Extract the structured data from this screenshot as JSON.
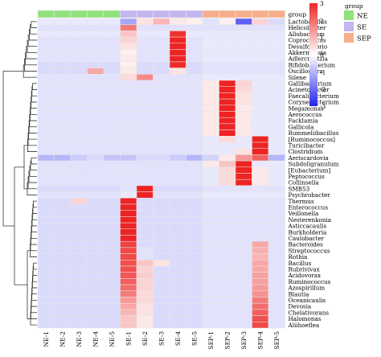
{
  "chart_data": {
    "type": "heatmap",
    "title": "",
    "xlabel": "",
    "ylabel": "",
    "columns": [
      "NE-1",
      "NE-2",
      "NE-3",
      "NE-4",
      "NE-5",
      "SE-1",
      "SE-2",
      "SE-3",
      "SE-4",
      "SE-5",
      "SEP-1",
      "SEP-2",
      "SEP-3",
      "SEP-4",
      "SEP-5"
    ],
    "column_groups": [
      "NE",
      "NE",
      "NE",
      "NE",
      "NE",
      "SE",
      "SE",
      "SE",
      "SE",
      "SE",
      "SEP",
      "SEP",
      "SEP",
      "SEP",
      "SEP"
    ],
    "group_title": "group",
    "groups": [
      {
        "name": "NE",
        "color": "#8fe37a"
      },
      {
        "name": "SE",
        "color": "#c3b5ee"
      },
      {
        "name": "SEP",
        "color": "#f6ae8a"
      }
    ],
    "color_scale": {
      "min": -3,
      "max": 3,
      "ticks": [
        3,
        2,
        1,
        0,
        -1,
        -2,
        -3
      ],
      "colors": [
        "#2323ee",
        "#ffffff",
        "#ee2323"
      ]
    },
    "rows": [
      "Lactobacillus",
      "Helicobacter",
      "Allobaculum",
      "Coprococcus",
      "Desulfovibrio",
      "Akkermansia",
      "Adlercreutzia",
      "Bifidobacterium",
      "Oscillospira",
      "Silene",
      "Gallibacterium",
      "Acinetobacter",
      "Faecalibacterium",
      "Corynebacterium",
      "Megamonas",
      "Aerococcus",
      "Facklamia",
      "Gallicola",
      "Rummeliibacillus",
      "[Ruminococcus]",
      "Turicibacter",
      "Clostridium",
      "Aeriscardovia",
      "Subdoligranulum",
      "[Eubacterium]",
      "Peptococcus",
      "Collinsella",
      "SMB53",
      "Psychrobacter",
      "Thermus",
      "Enterococcus",
      "Veillonella",
      "Nesterenkonia",
      "Asticcacaulis",
      "Burkholderia",
      "Caulobacter",
      "Bacteroides",
      "Streptococcus",
      "Rothia",
      "Bacillus",
      "Rubrivivax",
      "Acidovorax",
      "Ruminococcus",
      "Azospirillum",
      "Blautia",
      "Oceanicaulis",
      "Devosia",
      "Chelativorans",
      "Halomonas",
      "Aliihoeflea"
    ],
    "values": [
      [
        -0.3,
        -0.3,
        -0.3,
        -0.3,
        -0.3,
        -1.2,
        0.4,
        1.0,
        0.3,
        0.2,
        -0.4,
        0.2,
        -2.2,
        0.6,
        -0.5
      ],
      [
        -0.4,
        -0.4,
        -0.4,
        -0.4,
        -0.4,
        1.8,
        -0.4,
        -0.4,
        -0.4,
        -0.4,
        -0.4,
        -0.4,
        -0.4,
        -0.4,
        -0.4
      ],
      [
        -0.3,
        -0.3,
        -0.3,
        -0.3,
        -0.3,
        0.8,
        -0.3,
        -0.3,
        2.8,
        -0.3,
        -0.3,
        -0.3,
        -0.3,
        -0.3,
        -0.3
      ],
      [
        -0.4,
        -0.4,
        -0.4,
        -0.4,
        -0.4,
        0.6,
        -0.4,
        -0.4,
        3.0,
        -0.4,
        -0.3,
        -0.3,
        -0.3,
        -0.3,
        -0.3
      ],
      [
        -0.4,
        -0.4,
        -0.4,
        -0.4,
        -0.4,
        0.4,
        -0.4,
        -0.4,
        3.0,
        -0.4,
        -0.3,
        -0.3,
        -0.3,
        -0.3,
        -0.3
      ],
      [
        -0.4,
        -0.4,
        -0.4,
        -0.4,
        -0.4,
        0.2,
        -0.4,
        -0.4,
        3.0,
        -0.4,
        -0.3,
        -0.3,
        -0.3,
        -0.3,
        -0.3
      ],
      [
        -0.4,
        -0.4,
        -0.4,
        -0.4,
        -0.4,
        0.3,
        -0.4,
        -0.4,
        3.0,
        -0.4,
        -0.3,
        -0.3,
        -0.3,
        -0.3,
        -0.3
      ],
      [
        -0.5,
        -0.5,
        -0.5,
        -0.5,
        -0.5,
        0.2,
        -0.5,
        -0.5,
        2.9,
        -0.5,
        -0.4,
        -0.4,
        -0.4,
        -0.4,
        -0.4
      ],
      [
        -0.5,
        -0.5,
        -0.5,
        1.2,
        -0.5,
        0.3,
        -0.5,
        -0.5,
        0.4,
        -0.5,
        -0.4,
        -0.4,
        -0.4,
        -0.4,
        -0.4
      ],
      [
        -0.4,
        -0.4,
        -0.4,
        -0.4,
        -0.4,
        0.5,
        1.6,
        -0.4,
        -0.4,
        -0.4,
        -0.3,
        -0.3,
        -0.3,
        -0.3,
        -0.3
      ],
      [
        -0.4,
        -0.4,
        -0.4,
        -0.4,
        -0.4,
        -0.4,
        -0.4,
        -0.4,
        -0.4,
        -0.4,
        0.3,
        3.0,
        0.6,
        -0.3,
        -0.3
      ],
      [
        -0.4,
        -0.4,
        -0.4,
        -0.4,
        -0.4,
        -0.4,
        -0.4,
        -0.4,
        -0.4,
        -0.4,
        0.3,
        3.0,
        0.5,
        -0.3,
        -0.3
      ],
      [
        -0.4,
        -0.4,
        -0.4,
        -0.4,
        -0.4,
        -0.4,
        -0.4,
        -0.4,
        -0.4,
        -0.4,
        0.3,
        3.0,
        0.4,
        -0.3,
        -0.3
      ],
      [
        -0.4,
        -0.4,
        -0.4,
        -0.4,
        -0.4,
        -0.4,
        -0.4,
        -0.4,
        -0.4,
        -0.4,
        0.3,
        3.0,
        0.4,
        -0.3,
        -0.3
      ],
      [
        -0.4,
        -0.4,
        -0.4,
        -0.4,
        -0.4,
        -0.4,
        -0.4,
        -0.4,
        -0.4,
        -0.4,
        0.3,
        3.0,
        0.3,
        -0.3,
        -0.3
      ],
      [
        -0.4,
        -0.4,
        -0.4,
        -0.4,
        -0.4,
        -0.4,
        -0.4,
        -0.4,
        -0.4,
        -0.4,
        0.3,
        3.0,
        0.3,
        -0.3,
        -0.3
      ],
      [
        -0.4,
        -0.4,
        -0.4,
        -0.4,
        -0.4,
        -0.4,
        -0.4,
        -0.4,
        -0.4,
        -0.4,
        0.3,
        3.0,
        0.3,
        -0.3,
        -0.3
      ],
      [
        -0.4,
        -0.4,
        -0.4,
        -0.4,
        -0.4,
        -0.4,
        -0.4,
        -0.4,
        -0.4,
        -0.4,
        0.3,
        3.0,
        0.3,
        -0.3,
        -0.3
      ],
      [
        -0.4,
        -0.4,
        -0.4,
        -0.4,
        -0.4,
        -0.4,
        -0.4,
        -0.4,
        -0.4,
        -0.4,
        0.3,
        3.0,
        0.3,
        -0.3,
        -0.3
      ],
      [
        -0.4,
        -0.4,
        -0.4,
        -0.4,
        -0.4,
        -0.4,
        -0.4,
        -0.4,
        -0.4,
        -0.4,
        -0.3,
        0.5,
        -0.3,
        3.0,
        -0.3
      ],
      [
        -0.4,
        -0.4,
        -0.4,
        -0.4,
        -0.4,
        -0.4,
        -0.4,
        -0.4,
        -0.4,
        -0.4,
        -0.3,
        -0.3,
        -0.3,
        3.0,
        -0.3
      ],
      [
        -0.4,
        -0.4,
        -0.4,
        -0.4,
        -0.4,
        -0.4,
        -0.4,
        -0.4,
        -0.4,
        -0.4,
        -0.3,
        -0.3,
        0.4,
        3.0,
        -0.3
      ],
      [
        -1.0,
        -1.0,
        -0.7,
        -0.5,
        -0.8,
        -0.8,
        -0.5,
        -0.5,
        -0.7,
        -1.0,
        -0.6,
        0.3,
        1.4,
        2.2,
        -1.0
      ],
      [
        -0.4,
        -0.4,
        -0.4,
        -0.4,
        -0.4,
        -0.4,
        -0.4,
        -0.4,
        -0.4,
        -0.4,
        0.3,
        0.8,
        3.0,
        -0.3,
        -0.3
      ],
      [
        -0.4,
        -0.4,
        -0.4,
        -0.4,
        -0.4,
        -0.4,
        -0.4,
        -0.4,
        -0.4,
        -0.4,
        -0.3,
        0.5,
        3.0,
        0.3,
        -0.3
      ],
      [
        -0.4,
        -0.4,
        -0.4,
        -0.4,
        -0.4,
        -0.4,
        -0.4,
        -0.4,
        -0.4,
        -0.4,
        -0.3,
        0.5,
        3.0,
        0.3,
        -0.3
      ],
      [
        -0.4,
        -0.4,
        -0.4,
        -0.4,
        -0.4,
        -0.4,
        -0.4,
        -0.4,
        -0.4,
        -0.4,
        -0.3,
        0.5,
        3.0,
        0.3,
        -0.3
      ],
      [
        -0.5,
        -0.5,
        -0.5,
        -0.5,
        -0.5,
        -0.4,
        3.0,
        -0.5,
        -0.5,
        -0.5,
        -0.4,
        -0.4,
        -0.4,
        -0.4,
        -0.4
      ],
      [
        -0.4,
        -0.4,
        -0.4,
        -0.4,
        -0.4,
        -0.3,
        3.0,
        -0.4,
        -0.4,
        -0.4,
        -0.3,
        -0.3,
        -0.3,
        -0.3,
        -0.3
      ],
      [
        -0.5,
        -0.5,
        0.6,
        -0.5,
        -0.5,
        3.0,
        -0.5,
        -0.5,
        -0.5,
        -0.5,
        -0.4,
        -0.4,
        -0.4,
        -0.4,
        -0.4
      ],
      [
        -0.5,
        -0.5,
        -0.5,
        -0.5,
        -0.5,
        3.0,
        -0.5,
        -0.5,
        -0.5,
        -0.5,
        -0.4,
        -0.4,
        -0.4,
        -0.4,
        -0.4
      ],
      [
        -0.5,
        -0.5,
        -0.5,
        -0.5,
        -0.5,
        3.0,
        -0.5,
        -0.5,
        -0.5,
        -0.5,
        -0.4,
        -0.4,
        -0.4,
        -0.4,
        -0.4
      ],
      [
        -0.5,
        -0.5,
        -0.5,
        -0.5,
        -0.5,
        3.0,
        -0.5,
        -0.5,
        -0.5,
        -0.5,
        -0.4,
        -0.4,
        -0.4,
        -0.4,
        -0.4
      ],
      [
        -0.5,
        -0.5,
        -0.5,
        -0.5,
        -0.5,
        3.0,
        -0.5,
        -0.5,
        -0.5,
        -0.5,
        -0.4,
        -0.4,
        -0.4,
        -0.4,
        -0.4
      ],
      [
        -0.5,
        -0.5,
        -0.5,
        -0.5,
        -0.5,
        3.0,
        -0.5,
        -0.5,
        -0.5,
        -0.5,
        -0.4,
        -0.4,
        -0.4,
        -0.4,
        -0.4
      ],
      [
        -0.5,
        -0.5,
        -0.5,
        -0.5,
        -0.5,
        3.0,
        -0.5,
        -0.5,
        -0.5,
        -0.5,
        -0.4,
        -0.4,
        -0.4,
        -0.4,
        -0.4
      ],
      [
        -0.5,
        -0.5,
        -0.5,
        -0.5,
        -0.5,
        2.6,
        -0.5,
        -0.5,
        -0.5,
        -0.5,
        -0.4,
        -0.4,
        -0.4,
        1.2,
        -0.4
      ],
      [
        -0.5,
        -0.5,
        -0.5,
        -0.5,
        -0.5,
        2.5,
        -0.4,
        -0.5,
        -0.5,
        -0.5,
        -0.4,
        -0.4,
        -0.4,
        1.1,
        -0.4
      ],
      [
        -0.5,
        -0.5,
        -0.5,
        -0.5,
        -0.5,
        2.5,
        -0.4,
        -0.5,
        -0.5,
        -0.5,
        -0.4,
        -0.4,
        -0.4,
        1.0,
        -0.4
      ],
      [
        -0.5,
        -0.5,
        -0.5,
        -0.5,
        -0.5,
        2.4,
        0.8,
        0.4,
        -0.5,
        -0.5,
        -0.4,
        -0.4,
        -0.4,
        1.2,
        -0.4
      ],
      [
        -0.5,
        -0.5,
        -0.5,
        -0.5,
        -0.5,
        2.4,
        0.6,
        -0.5,
        -0.5,
        -0.5,
        -0.4,
        -0.4,
        -0.4,
        1.2,
        -0.4
      ],
      [
        -0.5,
        -0.5,
        -0.5,
        -0.5,
        -0.5,
        2.3,
        0.7,
        -0.5,
        -0.5,
        -0.5,
        -0.4,
        -0.4,
        -0.4,
        1.3,
        -0.4
      ],
      [
        -0.5,
        -0.5,
        -0.5,
        -0.5,
        -0.5,
        2.2,
        0.6,
        -0.5,
        -0.5,
        -0.5,
        -0.4,
        -0.4,
        -0.4,
        1.3,
        -0.4
      ],
      [
        -0.5,
        -0.5,
        -0.5,
        -0.5,
        -0.5,
        2.0,
        0.6,
        -0.5,
        -0.5,
        -0.5,
        -0.4,
        -0.4,
        -0.4,
        1.4,
        -0.4
      ],
      [
        -0.5,
        -0.5,
        -0.5,
        -0.5,
        -0.5,
        1.8,
        0.5,
        -0.5,
        -0.5,
        -0.5,
        -0.4,
        -0.4,
        -0.4,
        1.5,
        -0.4
      ],
      [
        -0.5,
        -0.5,
        -0.5,
        -0.5,
        -0.5,
        1.4,
        0.5,
        -0.5,
        -0.5,
        -0.5,
        -0.4,
        -0.4,
        -0.4,
        1.8,
        -0.4
      ],
      [
        -0.5,
        -0.5,
        -0.5,
        -0.5,
        -0.5,
        1.2,
        0.4,
        -0.5,
        -0.5,
        -0.5,
        -0.4,
        -0.4,
        -0.4,
        2.0,
        -0.4
      ],
      [
        -0.5,
        -0.5,
        -0.5,
        -0.5,
        -0.5,
        1.0,
        0.4,
        -0.5,
        -0.5,
        -0.5,
        -0.4,
        -0.4,
        -0.4,
        2.2,
        -0.4
      ],
      [
        -0.5,
        -0.5,
        -0.5,
        -0.5,
        -0.5,
        0.8,
        0.3,
        -0.5,
        -0.5,
        -0.5,
        -0.4,
        -0.4,
        -0.4,
        2.4,
        -0.4
      ],
      [
        -0.5,
        -0.5,
        -0.5,
        -0.5,
        -0.5,
        0.8,
        0.3,
        -0.5,
        -0.5,
        -0.5,
        -0.4,
        -0.4,
        -0.4,
        2.5,
        -0.4
      ]
    ]
  }
}
